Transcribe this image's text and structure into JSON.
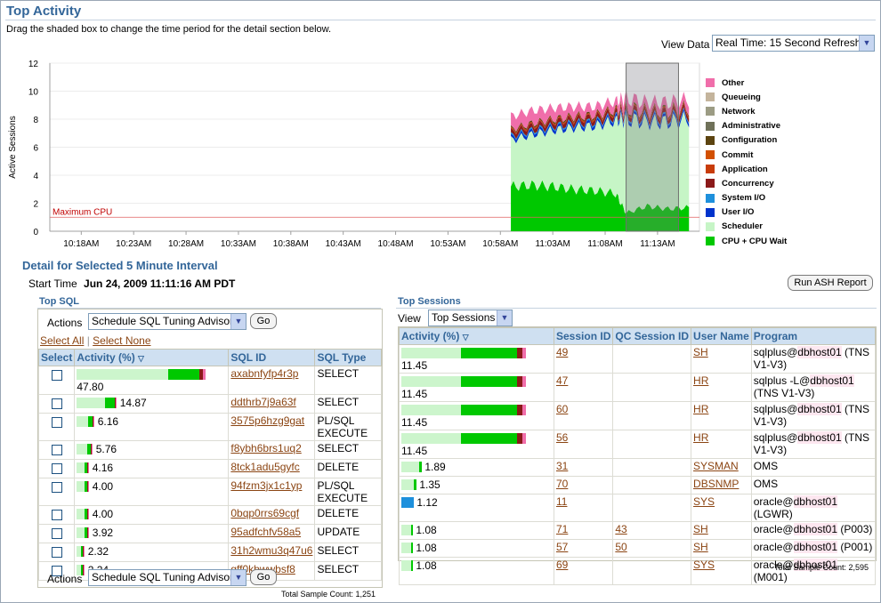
{
  "header": {
    "title": "Top Activity",
    "instructions": "Drag the shaded box to change the time period for the detail section below.",
    "view_data_label": "View Data",
    "view_data_value": "Real Time: 15 Second Refresh"
  },
  "chart_data": {
    "type": "area",
    "ylabel": "Active Sessions",
    "ylim": [
      0,
      12
    ],
    "y_ticks": [
      "0",
      "2",
      "4",
      "6",
      "8",
      "10",
      "12"
    ],
    "x_ticks": [
      "10:18AM",
      "10:23AM",
      "10:28AM",
      "10:33AM",
      "10:38AM",
      "10:43AM",
      "10:48AM",
      "10:53AM",
      "10:58AM",
      "11:03AM",
      "11:08AM",
      "11:13AM"
    ],
    "reference_line": {
      "label": "Maximum CPU",
      "value": 1
    },
    "selected_window": [
      "11:10AM",
      "11:15AM"
    ],
    "x": [
      "10:59AM",
      "11:01AM",
      "11:03AM",
      "11:05AM",
      "11:07AM",
      "11:09AM",
      "11:10AM",
      "11:12AM",
      "11:14AM",
      "11:16AM"
    ],
    "series": [
      {
        "name": "CPU + CPU Wait",
        "color": "#00c800",
        "values": [
          3.2,
          3.3,
          3.2,
          3.0,
          2.9,
          2.7,
          1.3,
          1.8,
          1.6,
          1.7
        ]
      },
      {
        "name": "Scheduler",
        "color": "#c6f5c6",
        "values": [
          3.3,
          3.6,
          4.0,
          4.4,
          4.6,
          5.2,
          6.7,
          6.0,
          6.2,
          6.3
        ]
      },
      {
        "name": "User I/O",
        "color": "#0033cc",
        "values": [
          0.2,
          0.2,
          0.2,
          0.2,
          0.2,
          0.2,
          0.2,
          0.2,
          0.2,
          0.2
        ]
      },
      {
        "name": "System I/O",
        "color": "#1e90dc",
        "values": [
          0.1,
          0.1,
          0.1,
          0.1,
          0.1,
          0.1,
          0.1,
          0.1,
          0.1,
          0.1
        ]
      },
      {
        "name": "Concurrency",
        "color": "#8b1a1a",
        "values": [
          0.3,
          0.3,
          0.3,
          0.3,
          0.3,
          0.3,
          0.3,
          0.3,
          0.3,
          0.3
        ]
      },
      {
        "name": "Application",
        "color": "#c83c0a",
        "values": [
          0.1,
          0.1,
          0.1,
          0.1,
          0.1,
          0.1,
          0.1,
          0.1,
          0.1,
          0.1
        ]
      },
      {
        "name": "Commit",
        "color": "#d25000",
        "values": [
          0.0,
          0.0,
          0.0,
          0.0,
          0.0,
          0.0,
          0.0,
          0.0,
          0.0,
          0.0
        ]
      },
      {
        "name": "Configuration",
        "color": "#5c4410",
        "values": [
          0.1,
          0.1,
          0.1,
          0.1,
          0.1,
          0.1,
          0.1,
          0.1,
          0.1,
          0.1
        ]
      },
      {
        "name": "Administrative",
        "color": "#6f7159",
        "values": [
          0.0,
          0.0,
          0.0,
          0.0,
          0.0,
          0.0,
          0.0,
          0.0,
          0.0,
          0.0
        ]
      },
      {
        "name": "Network",
        "color": "#9c9c84",
        "values": [
          0.0,
          0.0,
          0.0,
          0.0,
          0.0,
          0.0,
          0.0,
          0.0,
          0.0,
          0.0
        ]
      },
      {
        "name": "Queueing",
        "color": "#c4b49c",
        "values": [
          0.0,
          0.0,
          0.0,
          0.0,
          0.0,
          0.0,
          0.0,
          0.0,
          0.0,
          0.0
        ]
      },
      {
        "name": "Other",
        "color": "#f06eaa",
        "values": [
          0.9,
          0.9,
          0.8,
          0.7,
          0.6,
          0.6,
          0.7,
          0.6,
          0.6,
          0.6
        ]
      }
    ]
  },
  "legend": [
    {
      "name": "Other",
      "color": "#f06eaa"
    },
    {
      "name": "Queueing",
      "color": "#c4b49c"
    },
    {
      "name": "Network",
      "color": "#9c9c84"
    },
    {
      "name": "Administrative",
      "color": "#6f7159"
    },
    {
      "name": "Configuration",
      "color": "#5c4410"
    },
    {
      "name": "Commit",
      "color": "#d25000"
    },
    {
      "name": "Application",
      "color": "#c83c0a"
    },
    {
      "name": "Concurrency",
      "color": "#8b1a1a"
    },
    {
      "name": "System I/O",
      "color": "#1e90dc"
    },
    {
      "name": "User I/O",
      "color": "#0033cc"
    },
    {
      "name": "Scheduler",
      "color": "#c6f5c6"
    },
    {
      "name": "CPU + CPU Wait",
      "color": "#00c800"
    }
  ],
  "detail": {
    "title": "Detail for Selected 5 Minute Interval",
    "start_time_label": "Start Time",
    "start_time_value": "Jun 24, 2009 11:11:16 AM PDT",
    "run_ash": "Run ASH Report"
  },
  "top_sql": {
    "title": "Top SQL",
    "actions_label": "Actions",
    "action_value": "Schedule SQL Tuning Advisor",
    "go": "Go",
    "select_all": "Select All",
    "select_none": "Select None",
    "columns": [
      "Select",
      "Activity (%)",
      "SQL ID",
      "SQL Type"
    ],
    "rows": [
      {
        "activity": "47.80",
        "fraction": 1.0,
        "sql_id": "axabnfyfp4r3p",
        "type": "SELECT"
      },
      {
        "activity": "14.87",
        "fraction": 0.311,
        "sql_id": "ddthrb7j9a63f",
        "type": "SELECT"
      },
      {
        "activity": "6.16",
        "fraction": 0.129,
        "sql_id": "3575p6hzg9gat",
        "type": "PL/SQL EXECUTE"
      },
      {
        "activity": "5.76",
        "fraction": 0.12,
        "sql_id": "f8ybh6brs1uq2",
        "type": "SELECT"
      },
      {
        "activity": "4.16",
        "fraction": 0.087,
        "sql_id": "8tck1adu5gyfc",
        "type": "DELETE"
      },
      {
        "activity": "4.00",
        "fraction": 0.084,
        "sql_id": "94fzm3jx1c1yp",
        "type": "PL/SQL EXECUTE"
      },
      {
        "activity": "4.00",
        "fraction": 0.084,
        "sql_id": "0bqp0rrs69cgf",
        "type": "DELETE"
      },
      {
        "activity": "3.92",
        "fraction": 0.082,
        "sql_id": "95adfchfv58a5",
        "type": "UPDATE"
      },
      {
        "activity": "2.32",
        "fraction": 0.049,
        "sql_id": "31h2wmu3q47u6",
        "type": "SELECT"
      },
      {
        "activity": "2.24",
        "fraction": 0.047,
        "sql_id": "gff0kbwwbsf8",
        "type": "SELECT"
      }
    ],
    "total": "Total Sample Count: 1,251"
  },
  "top_sessions": {
    "title": "Top Sessions",
    "view_label": "View",
    "view_value": "Top Sessions",
    "columns": [
      "Activity (%)",
      "Session ID",
      "QC Session ID",
      "User Name",
      "Program"
    ],
    "rows": [
      {
        "activity": "11.45",
        "fraction": 1.0,
        "sid": "49",
        "qc": "",
        "user": "SH",
        "prog_a": "sqlplus@",
        "prog_host": "dbhost01",
        "prog_b": " (TNS V1-V3)"
      },
      {
        "activity": "11.45",
        "fraction": 1.0,
        "sid": "47",
        "qc": "",
        "user": "HR",
        "prog_a": "sqlplus -L@",
        "prog_host": "dbhost01",
        "prog_b": " (TNS V1-V3)"
      },
      {
        "activity": "11.45",
        "fraction": 1.0,
        "sid": "60",
        "qc": "",
        "user": "HR",
        "prog_a": "sqlplus@",
        "prog_host": "dbhost01",
        "prog_b": " (TNS V1-V3)"
      },
      {
        "activity": "11.45",
        "fraction": 1.0,
        "sid": "56",
        "qc": "",
        "user": "HR",
        "prog_a": "sqlplus@",
        "prog_host": "dbhost01",
        "prog_b": " (TNS V1-V3)"
      },
      {
        "activity": "1.89",
        "fraction": 0.165,
        "sid": "31",
        "qc": "",
        "user": "SYSMAN",
        "prog_a": "OMS",
        "prog_host": "",
        "prog_b": ""
      },
      {
        "activity": "1.35",
        "fraction": 0.118,
        "sid": "70",
        "qc": "",
        "user": "DBSNMP",
        "prog_a": "OMS",
        "prog_host": "",
        "prog_b": ""
      },
      {
        "activity": "1.12",
        "fraction": 0.098,
        "sid": "11",
        "qc": "",
        "user": "SYS",
        "prog_a": "oracle@",
        "prog_host": "dbhost01",
        "prog_b": " (LGWR)"
      },
      {
        "activity": "1.08",
        "fraction": 0.094,
        "sid": "71",
        "qc": "43",
        "user": "SH",
        "prog_a": "oracle@",
        "prog_host": "dbhost01",
        "prog_b": " (P003)"
      },
      {
        "activity": "1.08",
        "fraction": 0.094,
        "sid": "57",
        "qc": "50",
        "user": "SH",
        "prog_a": "oracle@",
        "prog_host": "dbhost01",
        "prog_b": " (P001)"
      },
      {
        "activity": "1.08",
        "fraction": 0.094,
        "sid": "69",
        "qc": "",
        "user": "SYS",
        "prog_a": "oracle@",
        "prog_host": "dbhost01",
        "prog_b": " (M001)"
      }
    ],
    "total": "Total Sample Count: 2,595"
  }
}
